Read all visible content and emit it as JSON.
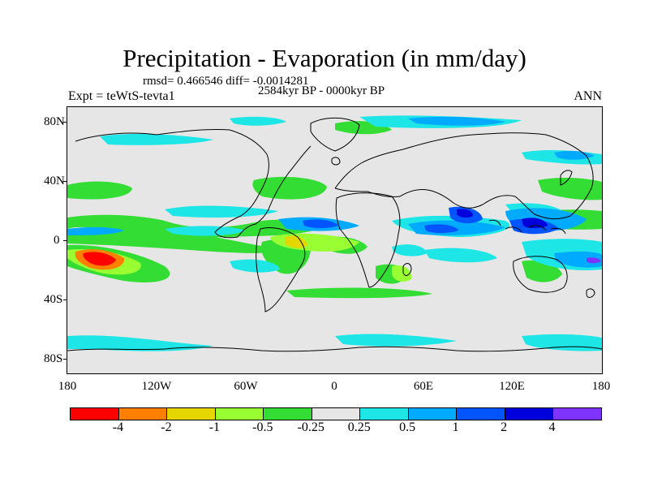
{
  "title": "Precipitation - Evaporation (in mm/day)",
  "stats": "rmsd= 0.466546 diff= -0.0014281",
  "left_label": "Expt = teWtS-tevta1",
  "center_label": "2584kyr BP - 0000kyr BP",
  "right_label": "ANN",
  "lat_labels": [
    "80N",
    "40N",
    "0",
    "40S",
    "80S"
  ],
  "lon_labels": [
    "180",
    "120W",
    "60W",
    "0",
    "60E",
    "120E",
    "180"
  ],
  "colorbar": {
    "colors": [
      "#ff0000",
      "#ff8000",
      "#e6d600",
      "#99ff33",
      "#33dd33",
      "#e6e6e6",
      "#1ee6e6",
      "#00aaff",
      "#0055ff",
      "#0000dd",
      "#7f33ff"
    ],
    "labels": [
      "-4",
      "-2",
      "-1",
      "-0.5",
      "-0.25",
      "0.25",
      "0.5",
      "1",
      "2",
      "4"
    ]
  },
  "colors": {
    "background": "#e6e6e6",
    "coast": "#000000"
  }
}
